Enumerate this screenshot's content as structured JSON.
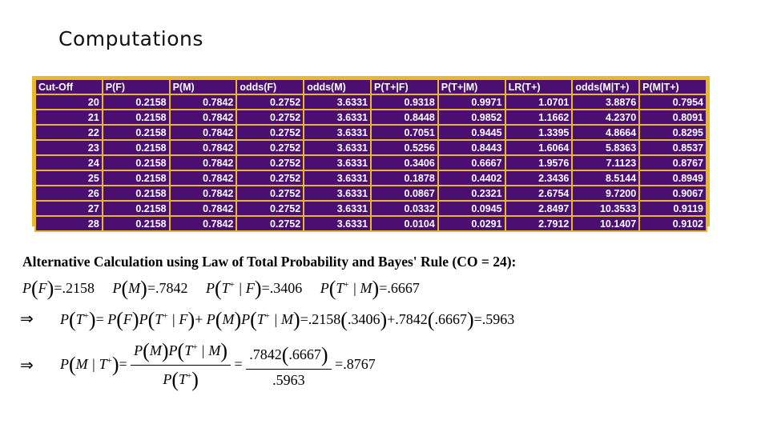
{
  "title": "Computations",
  "table": {
    "headers": [
      "Cut-Off",
      "P(F)",
      "P(M)",
      "odds(F)",
      "odds(M)",
      "P(T+|F)",
      "P(T+|M)",
      "LR(T+)",
      "odds(M|T+)",
      "P(M|T+)"
    ],
    "rows": [
      [
        "20",
        "0.2158",
        "0.7842",
        "0.2752",
        "3.6331",
        "0.9318",
        "0.9971",
        "1.0701",
        "3.8876",
        "0.7954"
      ],
      [
        "21",
        "0.2158",
        "0.7842",
        "0.2752",
        "3.6331",
        "0.8448",
        "0.9852",
        "1.1662",
        "4.2370",
        "0.8091"
      ],
      [
        "22",
        "0.2158",
        "0.7842",
        "0.2752",
        "3.6331",
        "0.7051",
        "0.9445",
        "1.3395",
        "4.8664",
        "0.8295"
      ],
      [
        "23",
        "0.2158",
        "0.7842",
        "0.2752",
        "3.6331",
        "0.5256",
        "0.8443",
        "1.6064",
        "5.8363",
        "0.8537"
      ],
      [
        "24",
        "0.2158",
        "0.7842",
        "0.2752",
        "3.6331",
        "0.3406",
        "0.6667",
        "1.9576",
        "7.1123",
        "0.8767"
      ],
      [
        "25",
        "0.2158",
        "0.7842",
        "0.2752",
        "3.6331",
        "0.1878",
        "0.4402",
        "2.3436",
        "8.5144",
        "0.8949"
      ],
      [
        "26",
        "0.2158",
        "0.7842",
        "0.2752",
        "3.6331",
        "0.0867",
        "0.2321",
        "2.6754",
        "9.7200",
        "0.9067"
      ],
      [
        "27",
        "0.2158",
        "0.7842",
        "0.2752",
        "3.6331",
        "0.0332",
        "0.0945",
        "2.8497",
        "10.3533",
        "0.9119"
      ],
      [
        "28",
        "0.2158",
        "0.7842",
        "0.2752",
        "3.6331",
        "0.0104",
        "0.0291",
        "2.7912",
        "10.1407",
        "0.9102"
      ]
    ]
  },
  "calc": {
    "heading": "Alternative Calculation using Law of Total Probability and Bayes' Rule (CO = 24):",
    "pf": ".2158",
    "pm": ".7842",
    "ptf": ".3406",
    "ptm": ".6667",
    "pt_result": ".5963",
    "pm_num": ".7842",
    "pm_result": ".8767"
  }
}
